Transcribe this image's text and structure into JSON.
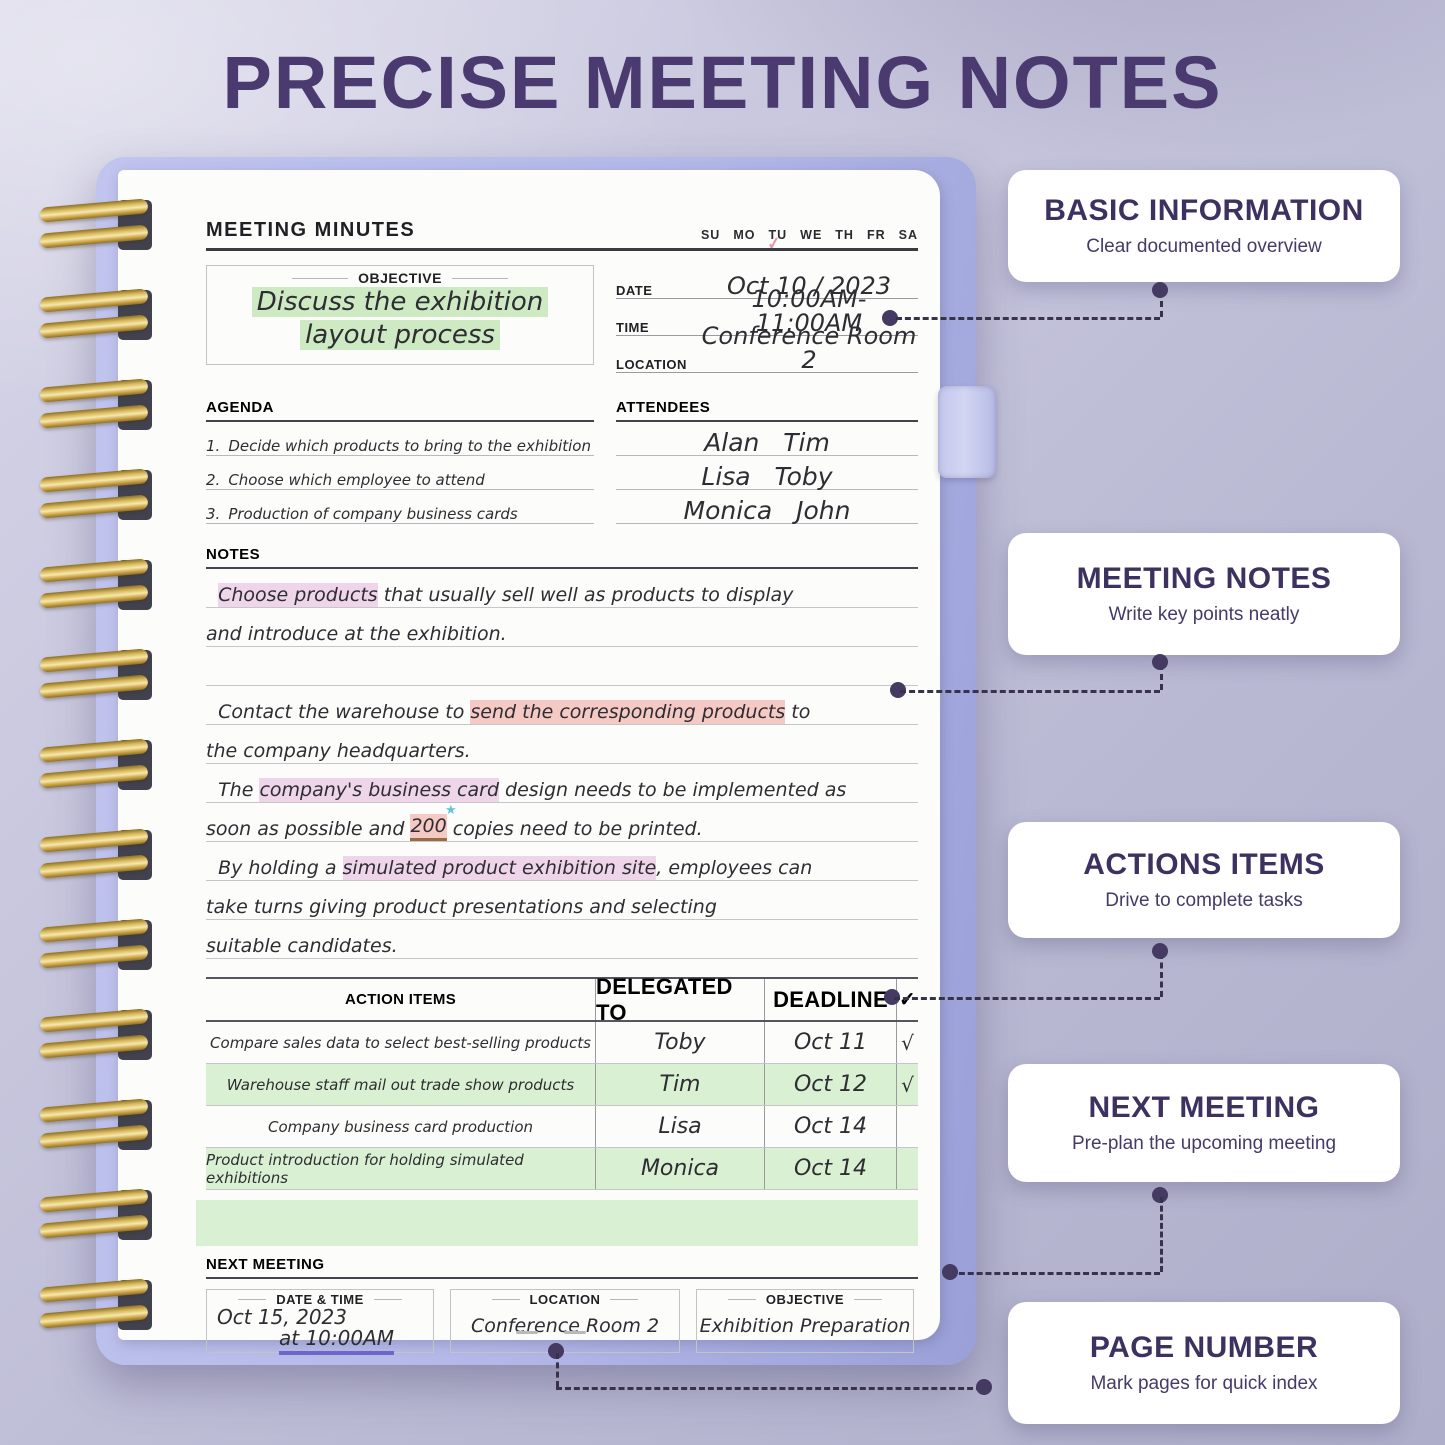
{
  "title": "PRECISE MEETING NOTES",
  "colors": {
    "accent_purple": "#4a3a70",
    "cover_purple": "#b4b8e8",
    "coil_gold": "#d7b658",
    "highlight_green": "#cdeac3",
    "highlight_pink": "#eed5ea",
    "highlight_red": "#f5c9c4",
    "table_row_green": "#daf0d2",
    "dot_purple": "#443a62",
    "check_pink": "#e49aac",
    "star_blue": "#5ec3dd",
    "underline_purple": "#7066c9"
  },
  "notebook": {
    "header": "MEETING MINUTES",
    "weekdays": [
      "SU",
      "MO",
      "TU",
      "WE",
      "TH",
      "FR",
      "SA"
    ],
    "checked_day": "TU",
    "objective": {
      "label": "OBJECTIVE",
      "line1": "Discuss the exhibition",
      "line2": "layout process"
    },
    "info": [
      {
        "label": "DATE",
        "value": "Oct 10 / 2023"
      },
      {
        "label": "TIME",
        "value": "10:00AM-11:00AM"
      },
      {
        "label": "LOCATION",
        "value": "Conference Room 2"
      }
    ],
    "agenda": {
      "label": "AGENDA",
      "items": [
        "Decide which products to bring to the exhibition",
        "Choose which employee to attend",
        "Production of company business cards"
      ]
    },
    "attendees": {
      "label": "ATTENDEES",
      "rows": [
        "Alan   Tim",
        "Lisa   Toby",
        "Monica   John"
      ]
    },
    "notes": {
      "label": "NOTES",
      "lines": [
        {
          "segs": [
            {
              "t": "  "
            },
            {
              "t": "Choose products",
              "h": "purple"
            },
            {
              "t": " that usually sell well as products to display"
            }
          ]
        },
        {
          "segs": [
            {
              "t": "and introduce at the exhibition."
            }
          ]
        },
        {
          "segs": []
        },
        {
          "segs": [
            {
              "t": "  Contact the warehouse to "
            },
            {
              "t": "send the corresponding products",
              "h": "red"
            },
            {
              "t": " to"
            }
          ]
        },
        {
          "segs": [
            {
              "t": "the company headquarters."
            }
          ]
        },
        {
          "segs": [
            {
              "t": "  The "
            },
            {
              "t": "company's business card",
              "h": "purple"
            },
            {
              "t": " design needs to be implemented as"
            }
          ]
        },
        {
          "segs": [
            {
              "t": "soon as possible and "
            },
            {
              "t": "200",
              "h": "red",
              "star": true,
              "underline": true
            },
            {
              "t": " copies need to be printed."
            }
          ]
        },
        {
          "segs": [
            {
              "t": "  By holding a "
            },
            {
              "t": "simulated product exhibition site",
              "h": "purple"
            },
            {
              "t": ", employees can"
            }
          ]
        },
        {
          "segs": [
            {
              "t": "take turns giving product presentations and selecting"
            }
          ]
        },
        {
          "segs": [
            {
              "t": "suitable candidates."
            }
          ]
        }
      ]
    },
    "action_table": {
      "headers": [
        "ACTION ITEMS",
        "DELEGATED TO",
        "DEADLINE",
        "✓"
      ],
      "rows": [
        {
          "item": "Compare sales data to select best-selling products",
          "who": "Toby",
          "deadline": "Oct 11",
          "done": "√",
          "green": false
        },
        {
          "item": "Warehouse staff mail out trade show products",
          "who": "Tim",
          "deadline": "Oct 12",
          "done": "√",
          "green": true
        },
        {
          "item": "Company business card production",
          "who": "Lisa",
          "deadline": "Oct 14",
          "done": "",
          "green": false
        },
        {
          "item": "Product introduction for holding simulated exhibitions",
          "who": "Monica",
          "deadline": "Oct 14",
          "done": "",
          "green": true
        }
      ]
    },
    "next_meeting": {
      "label": "NEXT MEETING",
      "boxes": [
        {
          "label": "DATE & TIME",
          "line1": "Oct 15, 2023",
          "line2": "at 10:00AM"
        },
        {
          "label": "LOCATION",
          "value": "Conference Room 2"
        },
        {
          "label": "OBJECTIVE",
          "value": "Exhibition Preparation"
        }
      ]
    },
    "page_marks": [
      "-",
      "-"
    ]
  },
  "callouts": [
    {
      "title": "BASIC INFORMATION",
      "subtitle": "Clear documented overview"
    },
    {
      "title": "MEETING NOTES",
      "subtitle": "Write key points neatly"
    },
    {
      "title": "ACTIONS ITEMS",
      "subtitle": "Drive to complete tasks"
    },
    {
      "title": "NEXT MEETING",
      "subtitle": "Pre-plan the upcoming meeting"
    },
    {
      "title": "PAGE NUMBER",
      "subtitle": "Mark pages for quick index"
    }
  ]
}
